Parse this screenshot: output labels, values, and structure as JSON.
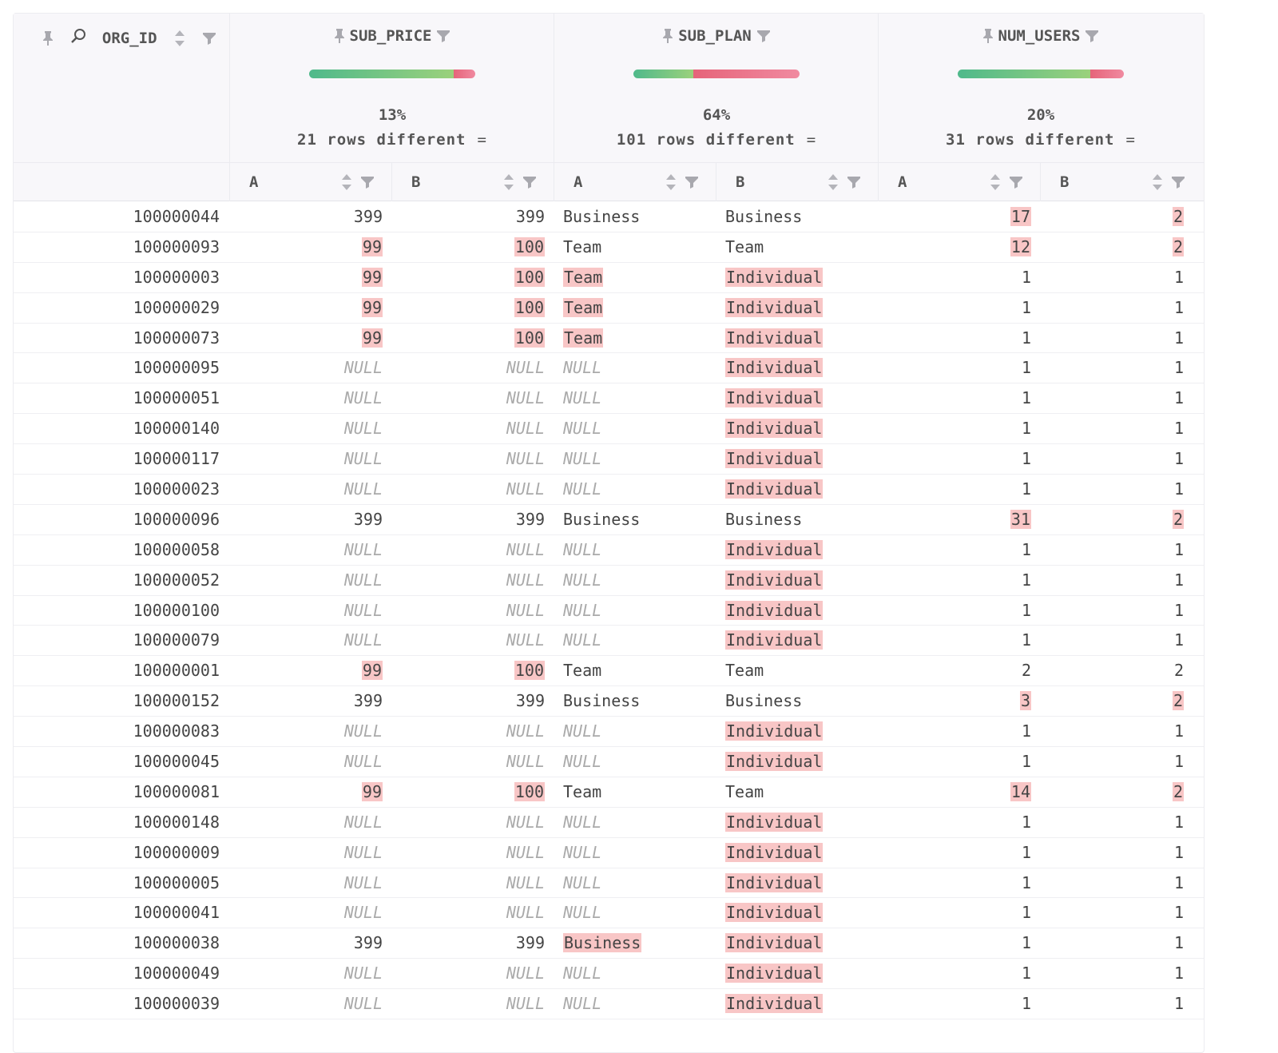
{
  "key_column": {
    "name": "ORG_ID"
  },
  "columns": [
    {
      "name": "SUB_PRICE",
      "pct": "13%",
      "diff_text": "21 rows different",
      "diff_fraction": 0.13
    },
    {
      "name": "SUB_PLAN",
      "pct": "64%",
      "diff_text": "101 rows different",
      "diff_fraction": 0.64
    },
    {
      "name": "NUM_USERS",
      "pct": "20%",
      "diff_text": "31 rows different",
      "diff_fraction": 0.2
    }
  ],
  "side_labels": {
    "a": "A",
    "b": "B"
  },
  "equals_symbol": "=",
  "colors": {
    "match": "#4fb98b",
    "diff": "#e6647a",
    "highlight": "#f8c6c6"
  },
  "rows": [
    {
      "id": "100000044",
      "pa": "399",
      "pb": "399",
      "sa": "Business",
      "sb": "Business",
      "ua": "17",
      "ub": "2",
      "hp": false,
      "hs": false,
      "hu": true
    },
    {
      "id": "100000093",
      "pa": "99",
      "pb": "100",
      "sa": "Team",
      "sb": "Team",
      "ua": "12",
      "ub": "2",
      "hp": true,
      "hs": false,
      "hu": true
    },
    {
      "id": "100000003",
      "pa": "99",
      "pb": "100",
      "sa": "Team",
      "sb": "Individual",
      "ua": "1",
      "ub": "1",
      "hp": true,
      "hs": true,
      "hu": false
    },
    {
      "id": "100000029",
      "pa": "99",
      "pb": "100",
      "sa": "Team",
      "sb": "Individual",
      "ua": "1",
      "ub": "1",
      "hp": true,
      "hs": true,
      "hu": false
    },
    {
      "id": "100000073",
      "pa": "99",
      "pb": "100",
      "sa": "Team",
      "sb": "Individual",
      "ua": "1",
      "ub": "1",
      "hp": true,
      "hs": true,
      "hu": false
    },
    {
      "id": "100000095",
      "pa": "NULL",
      "pb": "NULL",
      "sa": "NULL",
      "sb": "Individual",
      "ua": "1",
      "ub": "1",
      "hp": false,
      "hs": true,
      "hu": false
    },
    {
      "id": "100000051",
      "pa": "NULL",
      "pb": "NULL",
      "sa": "NULL",
      "sb": "Individual",
      "ua": "1",
      "ub": "1",
      "hp": false,
      "hs": true,
      "hu": false
    },
    {
      "id": "100000140",
      "pa": "NULL",
      "pb": "NULL",
      "sa": "NULL",
      "sb": "Individual",
      "ua": "1",
      "ub": "1",
      "hp": false,
      "hs": true,
      "hu": false
    },
    {
      "id": "100000117",
      "pa": "NULL",
      "pb": "NULL",
      "sa": "NULL",
      "sb": "Individual",
      "ua": "1",
      "ub": "1",
      "hp": false,
      "hs": true,
      "hu": false
    },
    {
      "id": "100000023",
      "pa": "NULL",
      "pb": "NULL",
      "sa": "NULL",
      "sb": "Individual",
      "ua": "1",
      "ub": "1",
      "hp": false,
      "hs": true,
      "hu": false
    },
    {
      "id": "100000096",
      "pa": "399",
      "pb": "399",
      "sa": "Business",
      "sb": "Business",
      "ua": "31",
      "ub": "2",
      "hp": false,
      "hs": false,
      "hu": true
    },
    {
      "id": "100000058",
      "pa": "NULL",
      "pb": "NULL",
      "sa": "NULL",
      "sb": "Individual",
      "ua": "1",
      "ub": "1",
      "hp": false,
      "hs": true,
      "hu": false
    },
    {
      "id": "100000052",
      "pa": "NULL",
      "pb": "NULL",
      "sa": "NULL",
      "sb": "Individual",
      "ua": "1",
      "ub": "1",
      "hp": false,
      "hs": true,
      "hu": false
    },
    {
      "id": "100000100",
      "pa": "NULL",
      "pb": "NULL",
      "sa": "NULL",
      "sb": "Individual",
      "ua": "1",
      "ub": "1",
      "hp": false,
      "hs": true,
      "hu": false
    },
    {
      "id": "100000079",
      "pa": "NULL",
      "pb": "NULL",
      "sa": "NULL",
      "sb": "Individual",
      "ua": "1",
      "ub": "1",
      "hp": false,
      "hs": true,
      "hu": false
    },
    {
      "id": "100000001",
      "pa": "99",
      "pb": "100",
      "sa": "Team",
      "sb": "Team",
      "ua": "2",
      "ub": "2",
      "hp": true,
      "hs": false,
      "hu": false
    },
    {
      "id": "100000152",
      "pa": "399",
      "pb": "399",
      "sa": "Business",
      "sb": "Business",
      "ua": "3",
      "ub": "2",
      "hp": false,
      "hs": false,
      "hu": true
    },
    {
      "id": "100000083",
      "pa": "NULL",
      "pb": "NULL",
      "sa": "NULL",
      "sb": "Individual",
      "ua": "1",
      "ub": "1",
      "hp": false,
      "hs": true,
      "hu": false
    },
    {
      "id": "100000045",
      "pa": "NULL",
      "pb": "NULL",
      "sa": "NULL",
      "sb": "Individual",
      "ua": "1",
      "ub": "1",
      "hp": false,
      "hs": true,
      "hu": false
    },
    {
      "id": "100000081",
      "pa": "99",
      "pb": "100",
      "sa": "Team",
      "sb": "Team",
      "ua": "14",
      "ub": "2",
      "hp": true,
      "hs": false,
      "hu": true
    },
    {
      "id": "100000148",
      "pa": "NULL",
      "pb": "NULL",
      "sa": "NULL",
      "sb": "Individual",
      "ua": "1",
      "ub": "1",
      "hp": false,
      "hs": true,
      "hu": false
    },
    {
      "id": "100000009",
      "pa": "NULL",
      "pb": "NULL",
      "sa": "NULL",
      "sb": "Individual",
      "ua": "1",
      "ub": "1",
      "hp": false,
      "hs": true,
      "hu": false
    },
    {
      "id": "100000005",
      "pa": "NULL",
      "pb": "NULL",
      "sa": "NULL",
      "sb": "Individual",
      "ua": "1",
      "ub": "1",
      "hp": false,
      "hs": true,
      "hu": false
    },
    {
      "id": "100000041",
      "pa": "NULL",
      "pb": "NULL",
      "sa": "NULL",
      "sb": "Individual",
      "ua": "1",
      "ub": "1",
      "hp": false,
      "hs": true,
      "hu": false
    },
    {
      "id": "100000038",
      "pa": "399",
      "pb": "399",
      "sa": "Business",
      "sb": "Individual",
      "ua": "1",
      "ub": "1",
      "hp": false,
      "hs": true,
      "hu": false
    },
    {
      "id": "100000049",
      "pa": "NULL",
      "pb": "NULL",
      "sa": "NULL",
      "sb": "Individual",
      "ua": "1",
      "ub": "1",
      "hp": false,
      "hs": true,
      "hu": false
    },
    {
      "id": "100000039",
      "pa": "NULL",
      "pb": "NULL",
      "sa": "NULL",
      "sb": "Individual",
      "ua": "1",
      "ub": "1",
      "hp": false,
      "hs": true,
      "hu": false
    }
  ]
}
